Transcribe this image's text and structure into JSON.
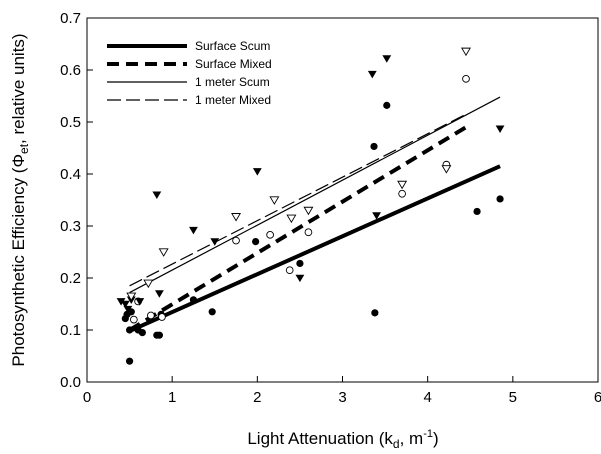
{
  "chart_data": {
    "type": "scatter",
    "xlabel_main": "Light Attenuation (k",
    "xlabel_sub": "d",
    "xlabel_mid": ", m",
    "xlabel_sup": "-1",
    "xlabel_end": ")",
    "ylabel_main": "Photosynthetic Efficiency (Φ",
    "ylabel_sub": "et",
    "ylabel_end": ", relative units)",
    "xlim": [
      0,
      6
    ],
    "ylim": [
      0,
      0.7
    ],
    "xticks": [
      "0",
      "1",
      "2",
      "3",
      "4",
      "5",
      "6"
    ],
    "yticks": [
      "0.0",
      "0.1",
      "0.2",
      "0.3",
      "0.4",
      "0.5",
      "0.6",
      "0.7"
    ],
    "grid": false,
    "legend_position": "top-left",
    "series": [
      {
        "name": "Surface Scum",
        "marker": "filled-circle",
        "line": {
          "style": "thick-solid",
          "x": [
            0.5,
            4.85
          ],
          "y": [
            0.098,
            0.415
          ]
        },
        "points": [
          [
            0.45,
            0.122
          ],
          [
            0.47,
            0.13
          ],
          [
            0.5,
            0.04
          ],
          [
            0.5,
            0.1
          ],
          [
            0.52,
            0.135
          ],
          [
            0.6,
            0.1
          ],
          [
            0.65,
            0.095
          ],
          [
            0.82,
            0.09
          ],
          [
            0.85,
            0.09
          ],
          [
            0.87,
            0.13
          ],
          [
            1.25,
            0.158
          ],
          [
            1.47,
            0.135
          ],
          [
            1.98,
            0.27
          ],
          [
            2.5,
            0.228
          ],
          [
            3.37,
            0.453
          ],
          [
            3.38,
            0.133
          ],
          [
            3.52,
            0.532
          ],
          [
            4.58,
            0.328
          ],
          [
            4.85,
            0.352
          ]
        ]
      },
      {
        "name": "Surface Mixed",
        "marker": "open-circle",
        "line": {
          "style": "thick-dashed",
          "x": [
            0.5,
            4.45
          ],
          "y": [
            0.1,
            0.49
          ]
        },
        "points": [
          [
            0.55,
            0.12
          ],
          [
            0.6,
            0.155
          ],
          [
            0.75,
            0.128
          ],
          [
            0.88,
            0.125
          ],
          [
            1.75,
            0.272
          ],
          [
            2.15,
            0.283
          ],
          [
            2.38,
            0.215
          ],
          [
            2.6,
            0.288
          ],
          [
            3.7,
            0.362
          ],
          [
            4.22,
            0.418
          ],
          [
            4.45,
            0.583
          ]
        ]
      },
      {
        "name": "1 meter Scum",
        "marker": "filled-triangle-down",
        "line": {
          "style": "thin-solid",
          "x": [
            0.5,
            4.85
          ],
          "y": [
            0.172,
            0.548
          ]
        },
        "points": [
          [
            0.4,
            0.155
          ],
          [
            0.45,
            0.15
          ],
          [
            0.48,
            0.14
          ],
          [
            0.52,
            0.158
          ],
          [
            0.62,
            0.155
          ],
          [
            0.82,
            0.36
          ],
          [
            0.85,
            0.17
          ],
          [
            1.25,
            0.292
          ],
          [
            1.5,
            0.27
          ],
          [
            2.0,
            0.405
          ],
          [
            2.5,
            0.2
          ],
          [
            3.35,
            0.592
          ],
          [
            3.4,
            0.32
          ],
          [
            3.52,
            0.622
          ],
          [
            4.85,
            0.487
          ]
        ]
      },
      {
        "name": "1 meter Mixed",
        "marker": "open-triangle-down",
        "line": {
          "style": "thin-dashed",
          "x": [
            0.5,
            4.45
          ],
          "y": [
            0.185,
            0.515
          ]
        },
        "points": [
          [
            0.52,
            0.165
          ],
          [
            0.72,
            0.19
          ],
          [
            0.9,
            0.25
          ],
          [
            1.75,
            0.318
          ],
          [
            2.2,
            0.35
          ],
          [
            2.4,
            0.315
          ],
          [
            2.6,
            0.33
          ],
          [
            3.7,
            0.38
          ],
          [
            4.22,
            0.41
          ],
          [
            4.45,
            0.636
          ]
        ]
      }
    ]
  }
}
